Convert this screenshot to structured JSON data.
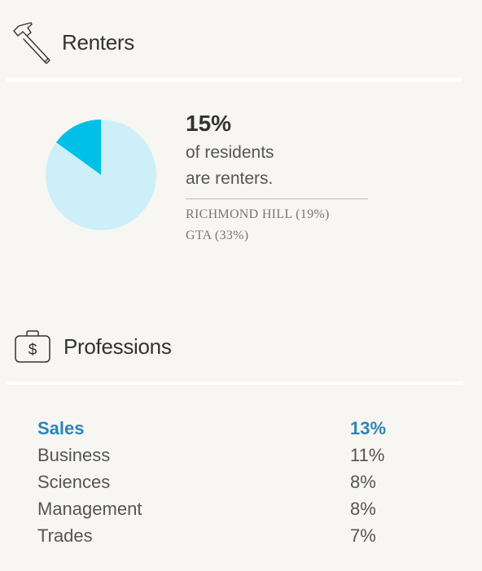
{
  "renters": {
    "title": "Renters",
    "stat_value": "15%",
    "stat_desc_line1": "of residents",
    "stat_desc_line2": "are renters.",
    "compare_1": "RICHMOND HILL (19%)",
    "compare_2": "GTA (33%)",
    "pie_fraction": 0.15,
    "pie_colors": {
      "filled": "#00c0e8",
      "rest": "#cdeff7"
    }
  },
  "professions": {
    "title": "Professions",
    "rows": [
      {
        "label": "Sales",
        "value": "13%"
      },
      {
        "label": "Business",
        "value": "11%"
      },
      {
        "label": "Sciences",
        "value": "8%"
      },
      {
        "label": "Management",
        "value": "8%"
      },
      {
        "label": "Trades",
        "value": "7%"
      }
    ],
    "highlight_color": "#2a86b8"
  }
}
